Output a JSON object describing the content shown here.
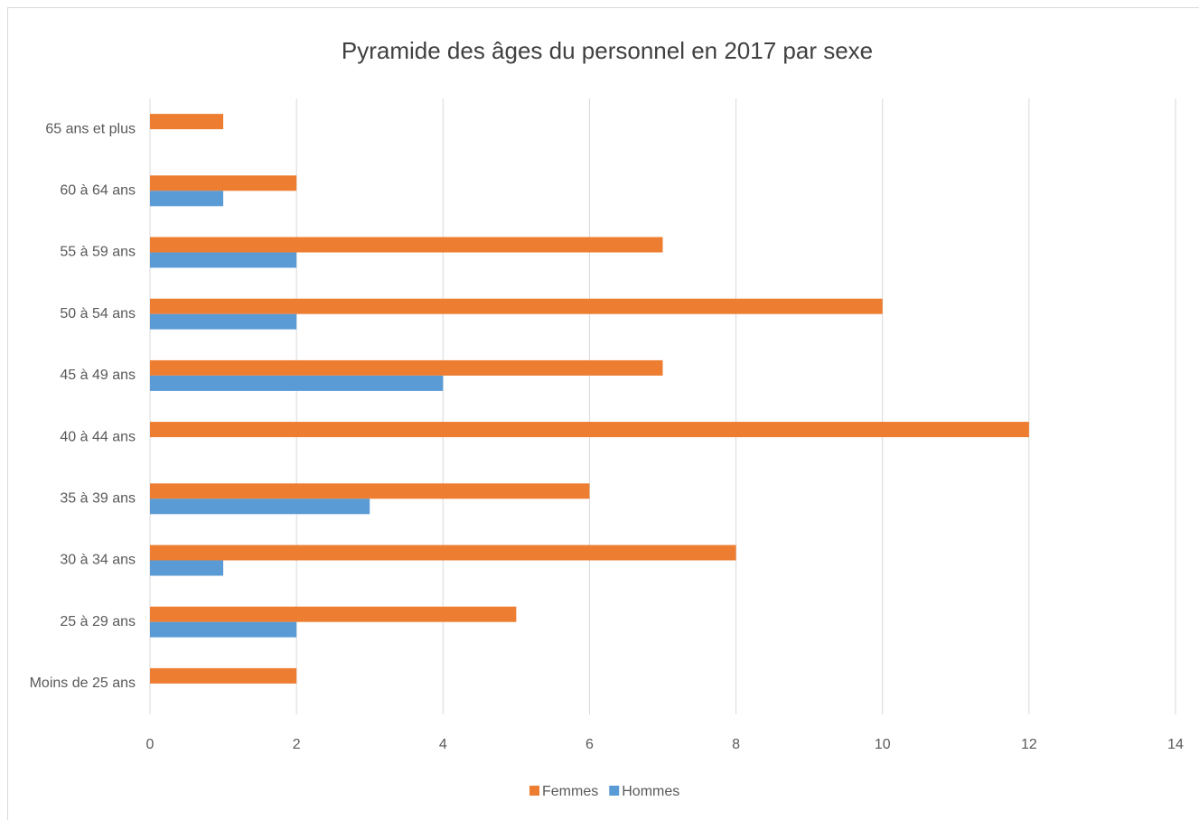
{
  "chart_data": {
    "type": "barh",
    "title": "Pyramide des âges du personnel en 2017 par sexe",
    "categories": [
      "65 ans et plus",
      "60 à 64 ans",
      "55 à 59 ans",
      "50 à 54 ans",
      "45 à 49 ans",
      "40 à 44 ans",
      "35 à 39 ans",
      "30 à 34 ans",
      "25 à 29 ans",
      "Moins de 25 ans"
    ],
    "series": [
      {
        "name": "Femmes",
        "color": "#ed7d31",
        "values": [
          1,
          2,
          7,
          10,
          7,
          12,
          6,
          8,
          5,
          2
        ]
      },
      {
        "name": "Hommes",
        "color": "#5b9bd5",
        "values": [
          0,
          1,
          2,
          2,
          4,
          0,
          3,
          1,
          2,
          0
        ]
      }
    ],
    "xlim": [
      0,
      14
    ],
    "xticks": [
      0,
      2,
      4,
      6,
      8,
      10,
      12,
      14
    ],
    "grid": true,
    "legend": "bottom"
  }
}
